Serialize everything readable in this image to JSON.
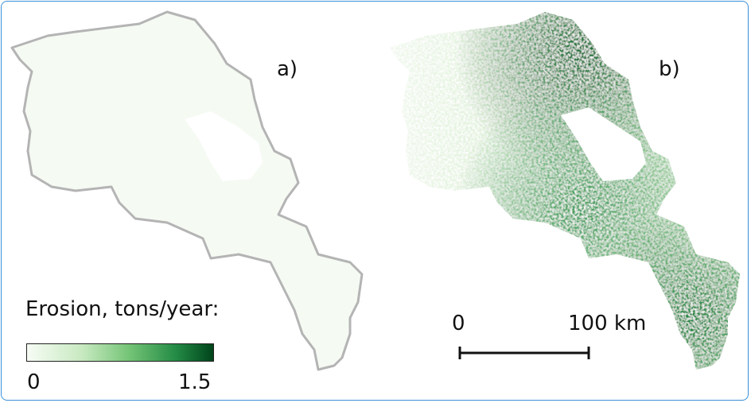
{
  "panels": [
    {
      "label": "a)"
    },
    {
      "label": "b)"
    }
  ],
  "legend": {
    "title": "Erosion, tons/year:",
    "min": "0",
    "max": "1.5",
    "color_low": "#f7fcf5",
    "color_high": "#00441b",
    "colormap": "Greens"
  },
  "scale_bar": {
    "start": "0",
    "end": "100 km"
  },
  "colors": {
    "outline": "#b4b4b4",
    "frame": "#3a8fd8"
  }
}
